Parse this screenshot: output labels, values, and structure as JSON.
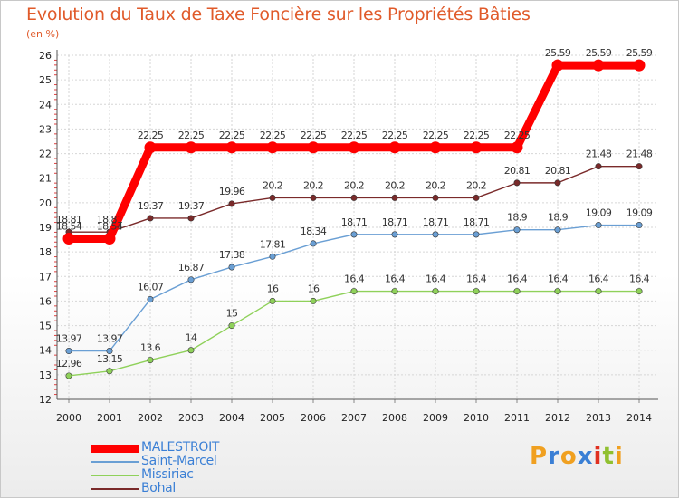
{
  "title": "Evolution du Taux de Taxe Foncière sur les Propriétés Bâties",
  "unit": "(en %)",
  "logo": {
    "letters": [
      "P",
      "r",
      "o",
      "x",
      "i",
      "t",
      "i"
    ],
    "colors": [
      "#f0a020",
      "#3a7fd5",
      "#f0a020",
      "#3a7fd5",
      "#e03020",
      "#90c030",
      "#f0a020"
    ]
  },
  "chart_data": {
    "type": "line",
    "title": "Evolution du Taux de Taxe Foncière sur les Propriétés Bâties",
    "ylabel": "(en %)",
    "xlabel": "",
    "ylim": [
      12,
      26
    ],
    "yticks": [
      "12",
      "13",
      "14",
      "15",
      "16",
      "17",
      "18",
      "19",
      "20",
      "21",
      "22",
      "23",
      "24",
      "25",
      "26"
    ],
    "categories": [
      "2000",
      "2001",
      "2002",
      "2003",
      "2004",
      "2005",
      "2006",
      "2007",
      "2008",
      "2009",
      "2010",
      "2011",
      "2012",
      "2013",
      "2014"
    ],
    "series": [
      {
        "name": "MALESTROIT",
        "color": "#ff0000",
        "values": [
          18.54,
          18.54,
          22.25,
          22.25,
          22.25,
          22.25,
          22.25,
          22.25,
          22.25,
          22.25,
          22.25,
          22.25,
          25.59,
          25.59,
          25.59
        ],
        "labels": [
          "18.54",
          "18.54",
          "22.25",
          "22.25",
          "22.25",
          "22.25",
          "22.25",
          "22.25",
          "22.25",
          "22.25",
          "22.25",
          "22.25",
          "25.59",
          "25.59",
          "25.59"
        ]
      },
      {
        "name": "Saint-Marcel",
        "color": "#6a9fd4",
        "values": [
          13.97,
          13.97,
          16.07,
          16.87,
          17.38,
          17.81,
          18.34,
          18.71,
          18.71,
          18.71,
          18.71,
          18.9,
          18.9,
          19.09,
          19.09
        ],
        "labels": [
          "13.97",
          "13.97",
          "16.07",
          "16.87",
          "17.38",
          "17.81",
          "18.34",
          "18.71",
          "18.71",
          "18.71",
          "18.71",
          "18.9",
          "18.9",
          "19.09",
          "19.09"
        ]
      },
      {
        "name": "Missiriac",
        "color": "#8fd15a",
        "values": [
          12.96,
          13.15,
          13.6,
          14,
          15,
          16,
          16,
          16.4,
          16.4,
          16.4,
          16.4,
          16.4,
          16.4,
          16.4,
          16.4
        ],
        "labels": [
          "12.96",
          "13.15",
          "13.6",
          "14",
          "15",
          "16",
          "16",
          "16.4",
          "16.4",
          "16.4",
          "16.4",
          "16.4",
          "16.4",
          "16.4",
          "16.4"
        ]
      },
      {
        "name": "Bohal",
        "color": "#7a2a2a",
        "values": [
          18.81,
          18.81,
          19.37,
          19.37,
          19.96,
          20.2,
          20.2,
          20.2,
          20.2,
          20.2,
          20.2,
          20.81,
          20.81,
          21.48,
          21.48
        ],
        "labels": [
          "18.81",
          "18.81",
          "19.37",
          "19.37",
          "19.96",
          "20.2",
          "20.2",
          "20.2",
          "20.2",
          "20.2",
          "20.2",
          "20.81",
          "20.81",
          "21.48",
          "21.48"
        ]
      }
    ]
  }
}
